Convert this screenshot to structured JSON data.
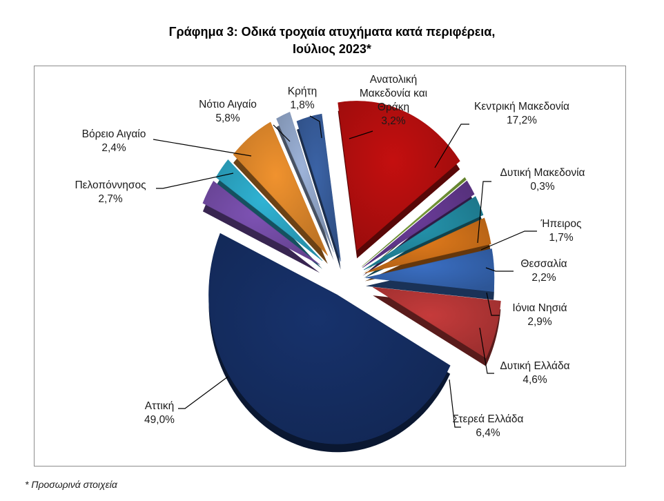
{
  "title_line1": "Γράφημα 3: Οδικά τροχαία ατυχήματα κατά περιφέρεια,",
  "title_line2": "Ιούλιος 2023*",
  "footnote": "* Προσωρινά στοιχεία",
  "chart_data": {
    "type": "pie",
    "title": "Γράφημα 3: Οδικά τροχαία ατυχήματα κατά περιφέρεια, Ιούλιος 2023*",
    "exploded": true,
    "style": "3d",
    "slices": [
      {
        "label": [
          "Ανατολική",
          "Μακεδονία και",
          "Θράκη"
        ],
        "value_text": "3,2%",
        "value": 3.2,
        "color": "#3b63a6"
      },
      {
        "label": [
          "Κεντρική Μακεδονία"
        ],
        "value_text": "17,2%",
        "value": 17.2,
        "color": "#c40f0f"
      },
      {
        "label": [
          "Δυτική Μακεδονία"
        ],
        "value_text": "0,3%",
        "value": 0.3,
        "color": "#7ca23a"
      },
      {
        "label": [
          "Ήπειρος"
        ],
        "value_text": "1,7%",
        "value": 1.7,
        "color": "#6a3c99"
      },
      {
        "label": [
          "Θεσσαλία"
        ],
        "value_text": "2,2%",
        "value": 2.2,
        "color": "#2493ac"
      },
      {
        "label": [
          "Ιόνια Νησιά"
        ],
        "value_text": "2,9%",
        "value": 2.9,
        "color": "#e07a1b"
      },
      {
        "label": [
          "Δυτική Ελλάδα"
        ],
        "value_text": "4,6%",
        "value": 4.6,
        "color": "#3a6ec2"
      },
      {
        "label": [
          "Στερεά Ελλάδα"
        ],
        "value_text": "6,4%",
        "value": 6.4,
        "color": "#c53b3b"
      },
      {
        "label": [
          "Αττική"
        ],
        "value_text": "49,0%",
        "value": 49.0,
        "color": "#17326c"
      },
      {
        "label": [
          "Πελοπόννησος"
        ],
        "value_text": "2,7%",
        "value": 2.7,
        "color": "#7d52b3"
      },
      {
        "label": [
          "Βόρειο Αιγαίο"
        ],
        "value_text": "2,4%",
        "value": 2.4,
        "color": "#2fb3d4"
      },
      {
        "label": [
          "Νότιο Αιγαίο"
        ],
        "value_text": "5,8%",
        "value": 5.8,
        "color": "#f0922e"
      },
      {
        "label": [
          "Κρήτη"
        ],
        "value_text": "1,8%",
        "value": 1.8,
        "color": "#9db3d9"
      }
    ]
  }
}
